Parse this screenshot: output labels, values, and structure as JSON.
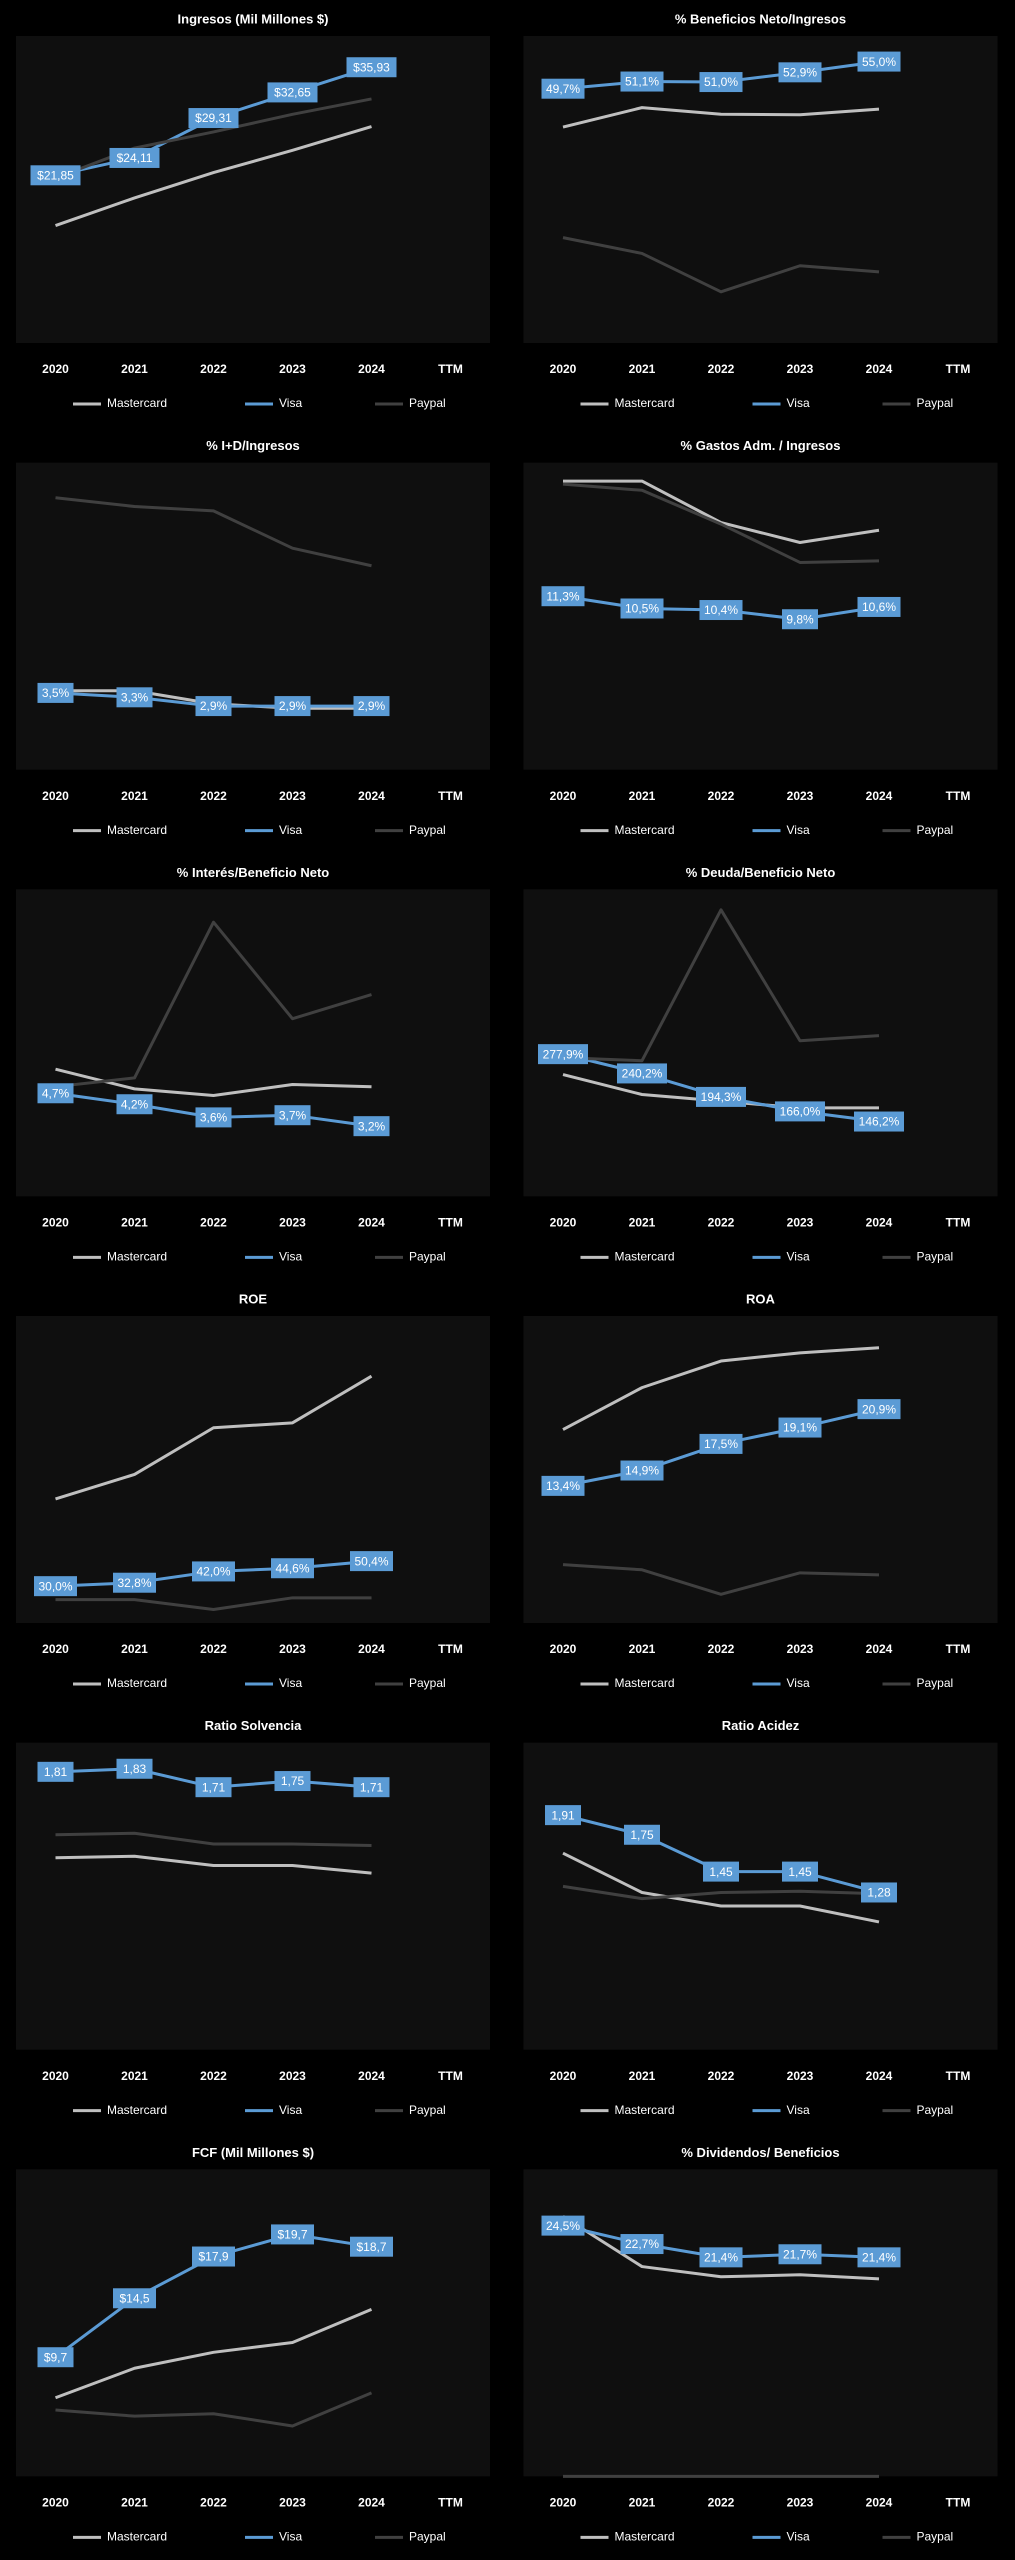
{
  "chart_data": [
    {
      "type": "line",
      "title": "Ingresos (Mil Millones $)",
      "categories": [
        "2020",
        "2021",
        "2022",
        "2023",
        "2024",
        "TTM"
      ],
      "ylim": [
        0,
        40
      ],
      "series": [
        {
          "name": "Mastercard",
          "color": "#bfbfbf",
          "values": [
            15.3,
            18.9,
            22.2,
            25.1,
            28.2,
            null
          ]
        },
        {
          "name": "Visa",
          "color": "#5b9bd5",
          "values": [
            21.85,
            24.11,
            29.31,
            32.65,
            35.93,
            null
          ],
          "value_labels": [
            "$21,85",
            "$24,11",
            "$29,31",
            "$32,65",
            "$35,93",
            null
          ]
        },
        {
          "name": "Paypal",
          "color": "#404040",
          "values": [
            21.5,
            25.4,
            27.5,
            29.8,
            31.8,
            null
          ]
        }
      ]
    },
    {
      "type": "line",
      "title": "% Beneficios Neto/Ingresos",
      "categories": [
        "2020",
        "2021",
        "2022",
        "2023",
        "2024",
        "TTM"
      ],
      "ylim": [
        0,
        60
      ],
      "series": [
        {
          "name": "Mastercard",
          "color": "#bfbfbf",
          "values": [
            42.2,
            46.0,
            44.7,
            44.6,
            45.7,
            null
          ]
        },
        {
          "name": "Visa",
          "color": "#5b9bd5",
          "values": [
            49.7,
            51.1,
            51.0,
            52.9,
            55.0,
            null
          ],
          "value_labels": [
            "49,7%",
            "51,1%",
            "51,0%",
            "52,9%",
            "55,0%",
            null
          ]
        },
        {
          "name": "Paypal",
          "color": "#404040",
          "values": [
            20.6,
            17.5,
            10.0,
            15.1,
            13.9,
            null
          ]
        }
      ]
    },
    {
      "type": "line",
      "title": "% I+D/Ingresos",
      "categories": [
        "2020",
        "2021",
        "2022",
        "2023",
        "2024",
        "TTM"
      ],
      "ylim": [
        0,
        14
      ],
      "series": [
        {
          "name": "Mastercard",
          "color": "#bfbfbf",
          "values": [
            3.6,
            3.6,
            3.0,
            2.8,
            2.8,
            null
          ]
        },
        {
          "name": "Visa",
          "color": "#5b9bd5",
          "values": [
            3.5,
            3.3,
            2.9,
            2.9,
            2.9,
            null
          ],
          "value_labels": [
            "3,5%",
            "3,3%",
            "2,9%",
            "2,9%",
            "2,9%",
            null
          ]
        },
        {
          "name": "Paypal",
          "color": "#404040",
          "values": [
            12.4,
            12.0,
            11.8,
            10.1,
            9.3,
            null
          ]
        }
      ]
    },
    {
      "type": "line",
      "title": "% Gastos Adm. / Ingresos",
      "categories": [
        "2020",
        "2021",
        "2022",
        "2023",
        "2024",
        "TTM"
      ],
      "ylim": [
        0,
        20
      ],
      "series": [
        {
          "name": "Mastercard",
          "color": "#bfbfbf",
          "values": [
            18.8,
            18.8,
            16.1,
            14.8,
            15.6,
            null
          ]
        },
        {
          "name": "Visa",
          "color": "#5b9bd5",
          "values": [
            11.3,
            10.5,
            10.4,
            9.8,
            10.6,
            null
          ],
          "value_labels": [
            "11,3%",
            "10,5%",
            "10,4%",
            "9,8%",
            "10,6%",
            null
          ]
        },
        {
          "name": "Paypal",
          "color": "#404040",
          "values": [
            18.6,
            18.2,
            16.0,
            13.5,
            13.6,
            null
          ]
        }
      ]
    },
    {
      "type": "line",
      "title": "% Interés/Beneficio Neto",
      "categories": [
        "2020",
        "2021",
        "2022",
        "2023",
        "2024",
        "TTM"
      ],
      "ylim": [
        0,
        14
      ],
      "series": [
        {
          "name": "Mastercard",
          "color": "#bfbfbf",
          "values": [
            5.8,
            4.9,
            4.6,
            5.1,
            5.0,
            null
          ]
        },
        {
          "name": "Visa",
          "color": "#5b9bd5",
          "values": [
            4.7,
            4.2,
            3.6,
            3.7,
            3.2,
            null
          ],
          "value_labels": [
            "4,7%",
            "4,2%",
            "3,6%",
            "3,7%",
            "3,2%",
            null
          ]
        },
        {
          "name": "Paypal",
          "color": "#404040",
          "values": [
            5.0,
            5.4,
            12.5,
            8.1,
            9.2,
            null
          ]
        }
      ]
    },
    {
      "type": "line",
      "title": "% Deuda/Beneficio Neto",
      "categories": [
        "2020",
        "2021",
        "2022",
        "2023",
        "2024",
        "TTM"
      ],
      "ylim": [
        0,
        600
      ],
      "series": [
        {
          "name": "Mastercard",
          "color": "#bfbfbf",
          "values": [
            238,
            199,
            186,
            173,
            173,
            null
          ]
        },
        {
          "name": "Visa",
          "color": "#5b9bd5",
          "values": [
            277.9,
            240.2,
            194.3,
            166.0,
            146.2,
            null
          ],
          "value_labels": [
            "277,9%",
            "240,2%",
            "194,3%",
            "166,0%",
            "146,2%",
            null
          ]
        },
        {
          "name": "Paypal",
          "color": "#404040",
          "values": [
            271,
            265,
            560,
            304,
            314,
            null
          ]
        }
      ]
    },
    {
      "type": "line",
      "title": "ROE",
      "categories": [
        "2020",
        "2021",
        "2022",
        "2023",
        "2024",
        "TTM"
      ],
      "ylim": [
        0,
        250
      ],
      "series": [
        {
          "name": "Mastercard",
          "color": "#bfbfbf",
          "values": [
            101,
            121,
            159,
            163,
            201,
            null
          ]
        },
        {
          "name": "Visa",
          "color": "#5b9bd5",
          "values": [
            30.0,
            32.8,
            42.0,
            44.6,
            50.4,
            null
          ],
          "value_labels": [
            "30,0%",
            "32,8%",
            "42,0%",
            "44,6%",
            "50,4%",
            null
          ]
        },
        {
          "name": "Paypal",
          "color": "#404040",
          "values": [
            19,
            19,
            11,
            20.5,
            20.5,
            null
          ]
        }
      ]
    },
    {
      "type": "line",
      "title": "ROA",
      "categories": [
        "2020",
        "2021",
        "2022",
        "2023",
        "2024",
        "TTM"
      ],
      "ylim": [
        0,
        30
      ],
      "series": [
        {
          "name": "Mastercard",
          "color": "#bfbfbf",
          "values": [
            18.9,
            23.0,
            25.6,
            26.4,
            26.9,
            null
          ]
        },
        {
          "name": "Visa",
          "color": "#5b9bd5",
          "values": [
            13.4,
            14.9,
            17.5,
            19.1,
            20.9,
            null
          ],
          "value_labels": [
            "13,4%",
            "14,9%",
            "17,5%",
            "19,1%",
            "20,9%",
            null
          ]
        },
        {
          "name": "Paypal",
          "color": "#404040",
          "values": [
            5.7,
            5.2,
            2.8,
            4.9,
            4.7,
            null
          ]
        }
      ]
    },
    {
      "type": "line",
      "title": "Ratio Solvencia",
      "categories": [
        "2020",
        "2021",
        "2022",
        "2023",
        "2024",
        "TTM"
      ],
      "ylim": [
        0,
        2
      ],
      "series": [
        {
          "name": "Mastercard",
          "color": "#bfbfbf",
          "values": [
            1.25,
            1.26,
            1.2,
            1.2,
            1.15,
            null
          ]
        },
        {
          "name": "Visa",
          "color": "#5b9bd5",
          "values": [
            1.81,
            1.83,
            1.71,
            1.75,
            1.71,
            null
          ],
          "value_labels": [
            "1,81",
            "1,83",
            "1,71",
            "1,75",
            "1,71",
            null
          ]
        },
        {
          "name": "Paypal",
          "color": "#404040",
          "values": [
            1.4,
            1.41,
            1.34,
            1.34,
            1.33,
            null
          ]
        }
      ]
    },
    {
      "type": "line",
      "title": "Ratio Acidez",
      "categories": [
        "2020",
        "2021",
        "2022",
        "2023",
        "2024",
        "TTM"
      ],
      "ylim": [
        0,
        2.5
      ],
      "series": [
        {
          "name": "Mastercard",
          "color": "#bfbfbf",
          "values": [
            1.6,
            1.28,
            1.17,
            1.17,
            1.04,
            null
          ]
        },
        {
          "name": "Visa",
          "color": "#5b9bd5",
          "values": [
            1.91,
            1.75,
            1.45,
            1.45,
            1.28,
            null
          ],
          "value_labels": [
            "1,91",
            "1,75",
            "1,45",
            "1,45",
            "1,28",
            null
          ]
        },
        {
          "name": "Paypal",
          "color": "#404040",
          "values": [
            1.33,
            1.23,
            1.28,
            1.29,
            1.27,
            null
          ]
        }
      ]
    },
    {
      "type": "line",
      "title": "FCF (Mil Millones $)",
      "categories": [
        "2020",
        "2021",
        "2022",
        "2023",
        "2024",
        "TTM"
      ],
      "ylim": [
        0,
        25
      ],
      "series": [
        {
          "name": "Mastercard",
          "color": "#bfbfbf",
          "values": [
            6.4,
            8.8,
            10.1,
            10.9,
            13.6,
            null
          ]
        },
        {
          "name": "Visa",
          "color": "#5b9bd5",
          "values": [
            9.7,
            14.5,
            17.9,
            19.7,
            18.7,
            null
          ],
          "value_labels": [
            "$9,7",
            "$14,5",
            "$17,9",
            "$19,7",
            "$18,7",
            null
          ]
        },
        {
          "name": "Paypal",
          "color": "#404040",
          "values": [
            5.4,
            4.9,
            5.1,
            4.1,
            6.8,
            null
          ]
        }
      ]
    },
    {
      "type": "line",
      "title": "% Dividendos/ Beneficios",
      "categories": [
        "2020",
        "2021",
        "2022",
        "2023",
        "2024",
        "TTM"
      ],
      "ylim": [
        0,
        30
      ],
      "series": [
        {
          "name": "Mastercard",
          "color": "#bfbfbf",
          "values": [
            25.4,
            20.5,
            19.5,
            19.7,
            19.3,
            null
          ]
        },
        {
          "name": "Visa",
          "color": "#5b9bd5",
          "values": [
            24.5,
            22.7,
            21.4,
            21.7,
            21.4,
            null
          ],
          "value_labels": [
            "24,5%",
            "22,7%",
            "21,4%",
            "21,7%",
            "21,4%",
            null
          ]
        },
        {
          "name": "Paypal",
          "color": "#404040",
          "values": [
            0,
            0,
            0,
            0,
            0,
            null
          ]
        }
      ]
    }
  ]
}
